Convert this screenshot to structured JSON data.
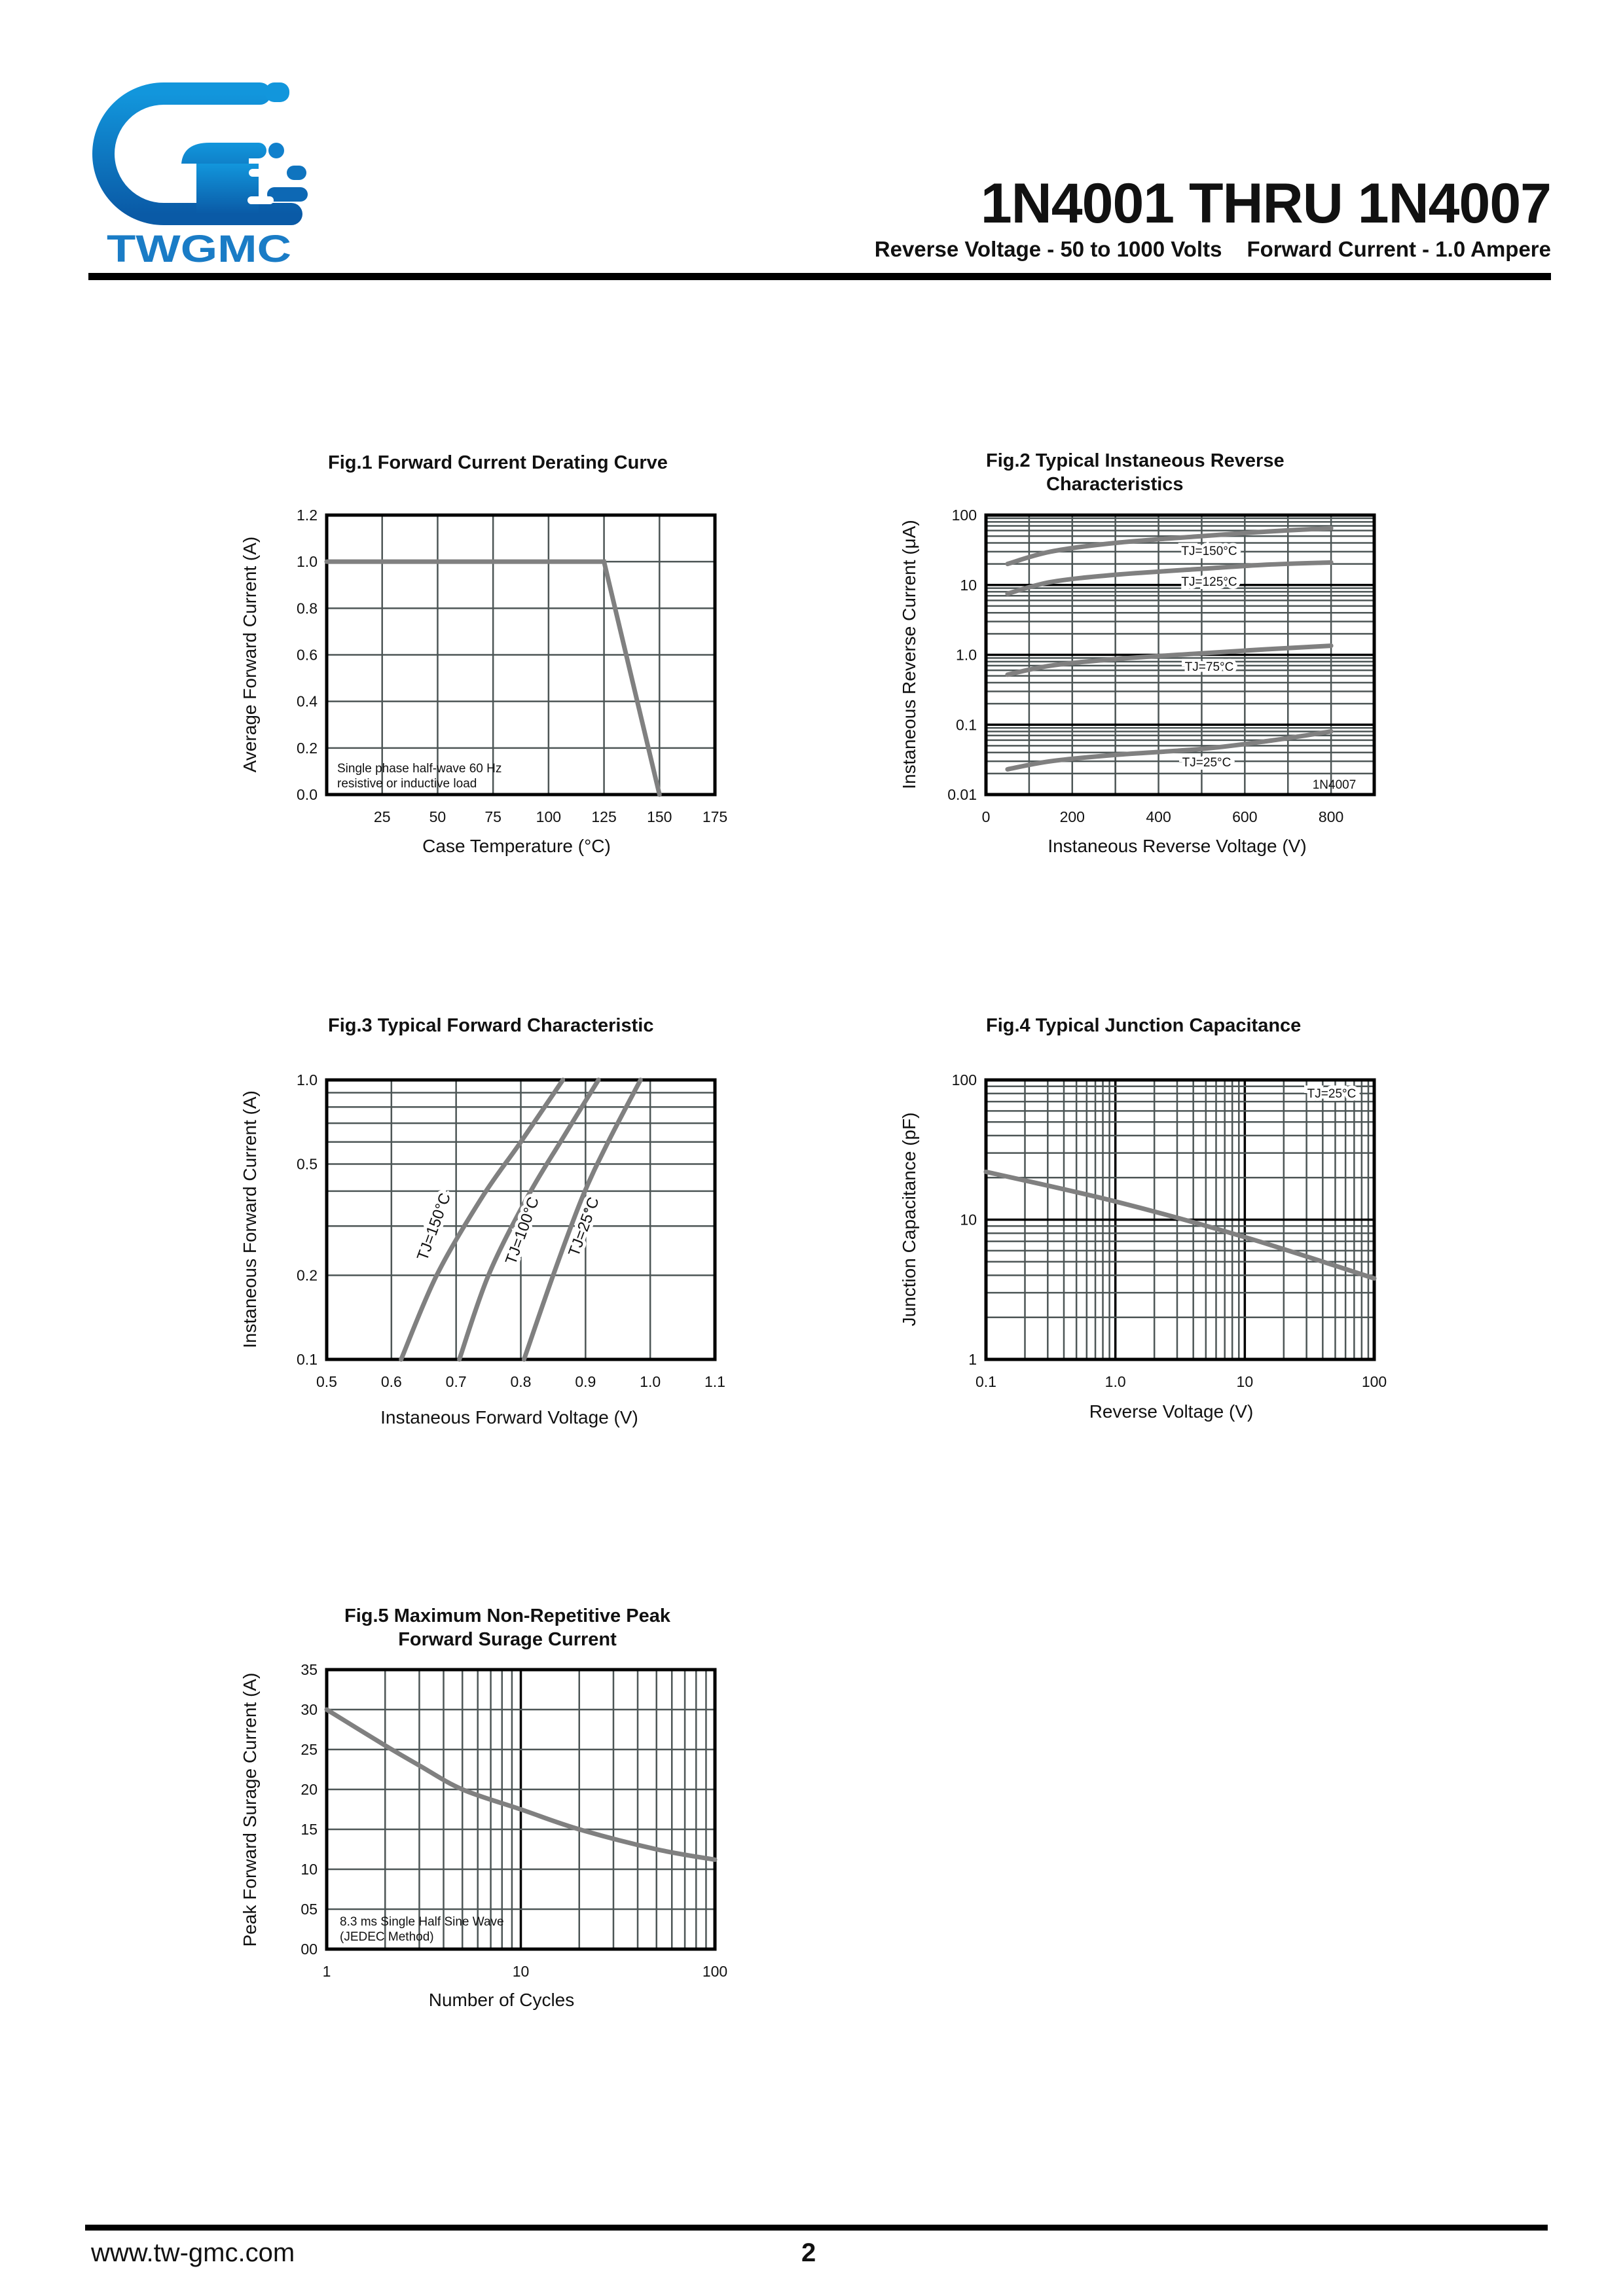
{
  "brand": {
    "logo_text": "TWGMC",
    "logo_color": "#1a7cc6"
  },
  "header": {
    "part_title": "1N4001 THRU 1N4007",
    "reverse_voltage": "Reverse Voltage - 50 to 1000 Volts",
    "forward_current": "Forward Current - 1.0 Ampere"
  },
  "footer": {
    "url": "www.tw-gmc.com",
    "page": "2"
  },
  "chart_data": [
    {
      "type": "line",
      "title_lines": [
        "Fig.1  Forward Current Derating Curve"
      ],
      "xlabel": "Case Temperature (°C)",
      "ylabel": "Average Forward Current (A)",
      "x_scale": "linear",
      "y_scale": "linear",
      "xlim": [
        0,
        175
      ],
      "ylim": [
        0,
        1.2
      ],
      "grid": true,
      "xticks": [
        {
          "v": 25,
          "label": "25"
        },
        {
          "v": 50,
          "label": "50"
        },
        {
          "v": 75,
          "label": "75"
        },
        {
          "v": 100,
          "label": "100"
        },
        {
          "v": 125,
          "label": "125"
        },
        {
          "v": 150,
          "label": "150"
        },
        {
          "v": 175,
          "label": "175"
        }
      ],
      "yticks": [
        {
          "v": 0,
          "label": "0.0"
        },
        {
          "v": 0.2,
          "label": "0.2"
        },
        {
          "v": 0.4,
          "label": "0.4"
        },
        {
          "v": 0.6,
          "label": "0.6"
        },
        {
          "v": 0.8,
          "label": "0.8"
        },
        {
          "v": 1.0,
          "label": "1.0"
        },
        {
          "v": 1.2,
          "label": "1.2"
        }
      ],
      "series": [
        {
          "points": [
            [
              0,
              1.0
            ],
            [
              125,
              1.0
            ],
            [
              150,
              0
            ]
          ]
        }
      ],
      "notes": [
        "Single phase half-wave 60 Hz",
        "resistive or inductive load"
      ],
      "curve_color": "#808080"
    },
    {
      "type": "line",
      "title_lines": [
        "Fig.2  Typical Instaneous Reverse",
        "Characteristics"
      ],
      "xlabel": "Instaneous Reverse Voltage (V)",
      "ylabel": "Instaneous Reverse Current (μA)",
      "x_scale": "linear",
      "y_scale": "log",
      "xlim": [
        0,
        900
      ],
      "ylim": [
        0.01,
        100
      ],
      "grid": true,
      "xticks": [
        {
          "v": 0,
          "label": "0"
        },
        {
          "v": 200,
          "label": "200"
        },
        {
          "v": 400,
          "label": "400"
        },
        {
          "v": 600,
          "label": "600"
        },
        {
          "v": 800,
          "label": "800"
        }
      ],
      "yticks": [
        {
          "v": 0.01,
          "label": "0.01"
        },
        {
          "v": 0.1,
          "label": "0.1"
        },
        {
          "v": 1,
          "label": "1.0"
        },
        {
          "v": 10,
          "label": "10"
        },
        {
          "v": 100,
          "label": "100"
        }
      ],
      "series": [
        {
          "name": "TJ=150°C",
          "points": [
            [
              50,
              20
            ],
            [
              150,
              30
            ],
            [
              300,
              40
            ],
            [
              500,
              50
            ],
            [
              650,
              58
            ],
            [
              800,
              65
            ]
          ]
        },
        {
          "name": "TJ=125°C",
          "points": [
            [
              50,
              7.5
            ],
            [
              150,
              11
            ],
            [
              300,
              14
            ],
            [
              500,
              17
            ],
            [
              650,
              19.5
            ],
            [
              800,
              21
            ]
          ]
        },
        {
          "name": "TJ=75°C",
          "points": [
            [
              50,
              0.52
            ],
            [
              150,
              0.7
            ],
            [
              300,
              0.87
            ],
            [
              500,
              1.05
            ],
            [
              650,
              1.2
            ],
            [
              800,
              1.35
            ]
          ]
        },
        {
          "name": "TJ=25°C",
          "points": [
            [
              50,
              0.023
            ],
            [
              150,
              0.03
            ],
            [
              300,
              0.037
            ],
            [
              500,
              0.045
            ],
            [
              650,
              0.058
            ],
            [
              800,
              0.08
            ]
          ]
        }
      ],
      "notes": [
        "1N4007"
      ],
      "curve_color": "#808080"
    },
    {
      "type": "line",
      "title_lines": [
        "Fig.3  Typical Forward Characteristic"
      ],
      "xlabel": "Instaneous Forward Voltage (V)",
      "ylabel": "Instaneous Forward Current  (A)",
      "x_scale": "linear",
      "y_scale": "log",
      "xlim": [
        0.5,
        1.1
      ],
      "ylim": [
        0.1,
        1.0
      ],
      "grid": true,
      "xticks": [
        {
          "v": 0.5,
          "label": "0.5"
        },
        {
          "v": 0.6,
          "label": "0.6"
        },
        {
          "v": 0.7,
          "label": "0.7"
        },
        {
          "v": 0.8,
          "label": "0.8"
        },
        {
          "v": 0.9,
          "label": "0.9"
        },
        {
          "v": 1.0,
          "label": "1.0"
        },
        {
          "v": 1.1,
          "label": "1.1"
        }
      ],
      "yticks": [
        {
          "v": 0.1,
          "label": "0.1"
        },
        {
          "v": 0.2,
          "label": "0.2"
        },
        {
          "v": 0.5,
          "label": "0.5"
        },
        {
          "v": 1.0,
          "label": "1.0"
        }
      ],
      "series": [
        {
          "name": "TJ=150°C",
          "points": [
            [
              0.615,
              0.1
            ],
            [
              0.67,
              0.2
            ],
            [
              0.74,
              0.38
            ],
            [
              0.8,
              0.6
            ],
            [
              0.865,
              1.0
            ]
          ]
        },
        {
          "name": "TJ=100°C",
          "points": [
            [
              0.705,
              0.1
            ],
            [
              0.75,
              0.2
            ],
            [
              0.81,
              0.38
            ],
            [
              0.865,
              0.62
            ],
            [
              0.92,
              1.0
            ]
          ]
        },
        {
          "name": "TJ=25°C",
          "points": [
            [
              0.805,
              0.1
            ],
            [
              0.85,
              0.2
            ],
            [
              0.895,
              0.38
            ],
            [
              0.935,
              0.6
            ],
            [
              0.985,
              1.0
            ]
          ]
        }
      ],
      "curve_color": "#808080"
    },
    {
      "type": "line",
      "title_lines": [
        "Fig.4  Typical Junction Capacitance"
      ],
      "xlabel": "Reverse  Voltage (V)",
      "ylabel": "Junction Capacitance (pF)",
      "x_scale": "log",
      "y_scale": "log",
      "xlim": [
        0.1,
        100
      ],
      "ylim": [
        1,
        100
      ],
      "grid": true,
      "xticks": [
        {
          "v": 0.1,
          "label": "0.1"
        },
        {
          "v": 1,
          "label": "1.0"
        },
        {
          "v": 10,
          "label": "10"
        },
        {
          "v": 100,
          "label": "100"
        }
      ],
      "yticks": [
        {
          "v": 1,
          "label": "1"
        },
        {
          "v": 10,
          "label": "10"
        },
        {
          "v": 100,
          "label": "100"
        }
      ],
      "series": [
        {
          "name": "TJ=25°C",
          "points": [
            [
              0.1,
              22
            ],
            [
              1,
              13.5
            ],
            [
              10,
              7.5
            ],
            [
              100,
              3.8
            ]
          ]
        }
      ],
      "curve_color": "#808080"
    },
    {
      "type": "line",
      "title_lines": [
        "Fig.5  Maximum Non-Repetitive Peak",
        "Forward Surage Current"
      ],
      "xlabel": "Number of Cycles",
      "ylabel": "Peak Forward Surage Current (A)",
      "x_scale": "log",
      "y_scale": "linear",
      "xlim": [
        1,
        100
      ],
      "ylim": [
        0,
        35
      ],
      "grid": true,
      "xticks": [
        {
          "v": 1,
          "label": "1"
        },
        {
          "v": 10,
          "label": "10"
        },
        {
          "v": 100,
          "label": "100"
        }
      ],
      "yticks": [
        {
          "v": 0,
          "label": "00"
        },
        {
          "v": 5,
          "label": "05"
        },
        {
          "v": 10,
          "label": "10"
        },
        {
          "v": 15,
          "label": "15"
        },
        {
          "v": 20,
          "label": "20"
        },
        {
          "v": 25,
          "label": "25"
        },
        {
          "v": 30,
          "label": "30"
        },
        {
          "v": 35,
          "label": "35"
        }
      ],
      "series": [
        {
          "points": [
            [
              1,
              30
            ],
            [
              2,
              25.5
            ],
            [
              3,
              23
            ],
            [
              5,
              20
            ],
            [
              10,
              17.5
            ],
            [
              20,
              15
            ],
            [
              50,
              12.5
            ],
            [
              100,
              11.2
            ]
          ]
        }
      ],
      "notes": [
        "8.3 ms Single Half Sine Wave",
        "(JEDEC Method)"
      ],
      "curve_color": "#808080"
    }
  ]
}
